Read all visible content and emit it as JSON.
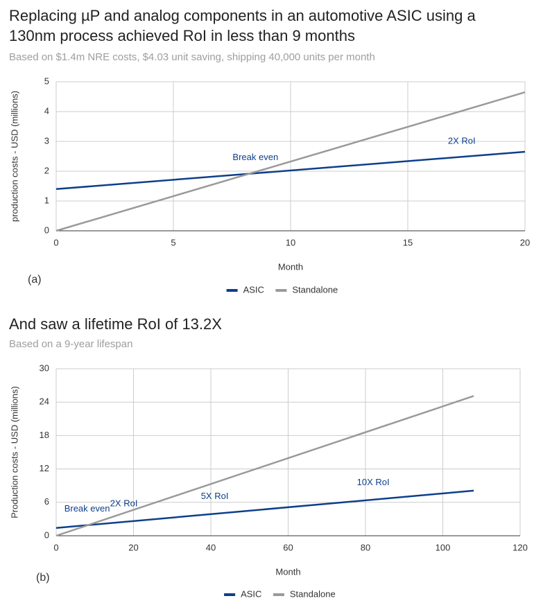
{
  "chart_data": [
    {
      "type": "line",
      "title": "Replacing µP and analog components in an automotive ASIC using a 130nm process achieved RoI in less than 9 months",
      "subtitle": "Based on $1.4m NRE costs, $4.03 unit saving, shipping 40,000 units per month",
      "x_label": "Month",
      "y_label": "production costs - USD (millions)",
      "panel_label": "(a)",
      "x": [
        0,
        20
      ],
      "series": [
        {
          "name": "ASIC",
          "color": "#0d3f8a",
          "values": [
            1.4,
            2.65
          ]
        },
        {
          "name": "Standalone",
          "color": "#9a9a9a",
          "values": [
            0,
            4.65
          ]
        }
      ],
      "xlim": [
        0,
        20
      ],
      "xticks": [
        0,
        5,
        10,
        15,
        20
      ],
      "ylim": [
        0,
        5
      ],
      "yticks": [
        0,
        1,
        2,
        3,
        4,
        5
      ],
      "grid": true,
      "legend": "bottom",
      "annotations": [
        "Break even",
        "2X RoI"
      ]
    },
    {
      "type": "line",
      "title": "And saw a lifetime RoI of 13.2X",
      "subtitle": "Based on a 9-year lifespan",
      "x_label": "Month",
      "y_label": "Production costs - USD (millions)",
      "panel_label": "(b)",
      "x": [
        0,
        108
      ],
      "series": [
        {
          "name": "ASIC",
          "color": "#0d3f8a",
          "values": [
            1.4,
            8.1
          ]
        },
        {
          "name": "Standalone",
          "color": "#9a9a9a",
          "values": [
            0,
            25.1
          ]
        }
      ],
      "xlim": [
        0,
        120
      ],
      "xticks": [
        0,
        20,
        40,
        60,
        80,
        100,
        120
      ],
      "ylim": [
        0,
        30
      ],
      "yticks": [
        0,
        6,
        12,
        18,
        24,
        30
      ],
      "grid": true,
      "legend": "bottom",
      "annotations": [
        "Break even",
        "2X RoI",
        "5X RoI",
        "10X RoI"
      ]
    }
  ]
}
